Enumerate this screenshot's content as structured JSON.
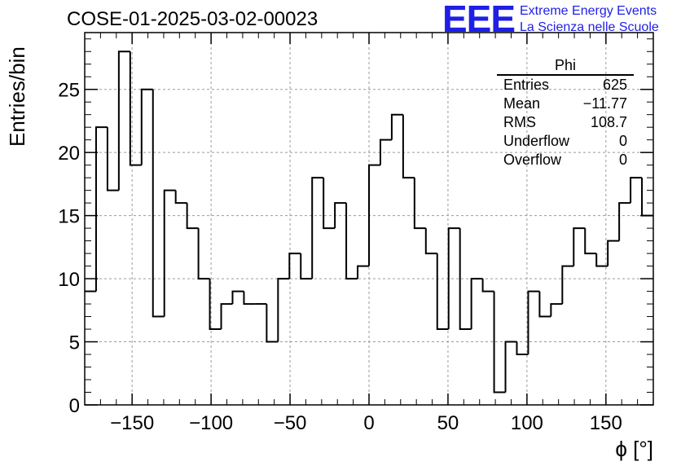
{
  "title": "COSE-01-2025-03-02-00023",
  "logo": {
    "mark": "EEE",
    "line1": "Extreme Energy Events",
    "line2": "La Scienza nelle Scuole",
    "color": "#1f1fe6"
  },
  "stats": {
    "name": "Phi",
    "rows": [
      {
        "label": "Entries",
        "value": "625"
      },
      {
        "label": "Mean",
        "value": "−11.77"
      },
      {
        "label": "RMS",
        "value": "108.7"
      },
      {
        "label": "Underflow",
        "value": "0"
      },
      {
        "label": "Overflow",
        "value": "0"
      }
    ]
  },
  "chart_data": {
    "type": "histogram",
    "xlabel": "ϕ [°]",
    "ylabel": "Entries/bin",
    "xlim": [
      -180,
      180
    ],
    "ylim": [
      0,
      29.5
    ],
    "bin_width": 7.2,
    "grid": true,
    "xticks": [
      -150,
      -100,
      -50,
      0,
      50,
      100,
      150
    ],
    "yticks": [
      0,
      5,
      10,
      15,
      20,
      25
    ],
    "values": [
      9,
      22,
      17,
      28,
      19,
      25,
      7,
      17,
      16,
      14,
      10,
      6,
      8,
      9,
      8,
      8,
      5,
      10,
      12,
      10,
      18,
      14,
      16,
      10,
      11,
      19,
      21,
      23,
      18,
      14,
      12,
      6,
      14,
      6,
      10,
      9,
      1,
      5,
      4,
      9,
      7,
      8,
      11,
      14,
      12,
      11,
      13,
      16,
      18,
      15
    ]
  }
}
